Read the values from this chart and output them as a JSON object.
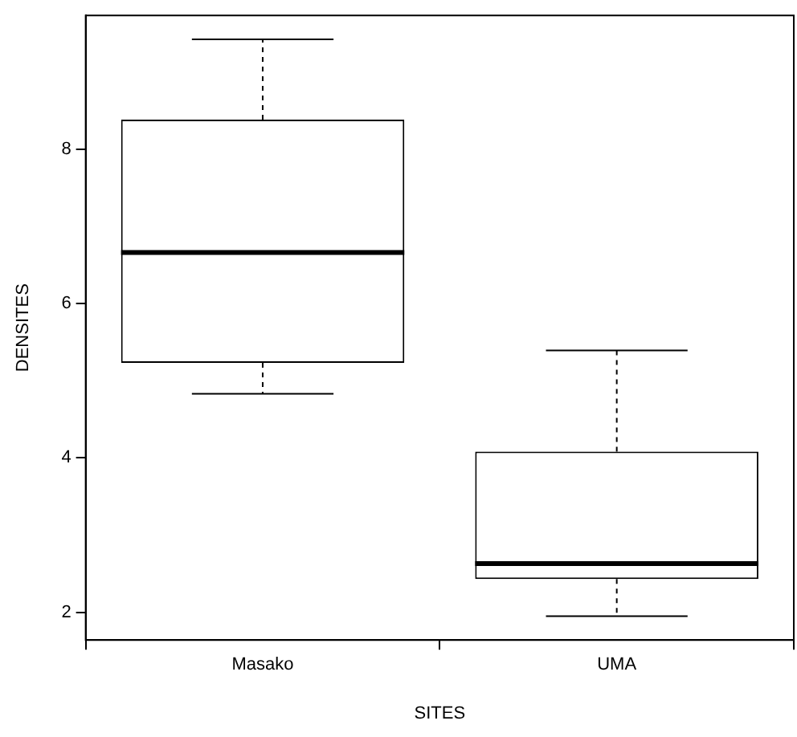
{
  "chart_data": {
    "type": "box",
    "xlabel": "SITES",
    "ylabel": "DENSITES",
    "categories": [
      "Masako",
      "UMA"
    ],
    "boxes": [
      {
        "low": 4.83,
        "q1": 5.23,
        "median": 6.66,
        "q3": 8.38,
        "high": 9.42
      },
      {
        "low": 1.95,
        "q1": 2.43,
        "median": 2.63,
        "q3": 4.08,
        "high": 5.39
      }
    ],
    "ylim": [
      1.64,
      9.73
    ],
    "yticks": [
      2,
      4,
      6,
      8
    ],
    "grid": false,
    "legend": false
  }
}
